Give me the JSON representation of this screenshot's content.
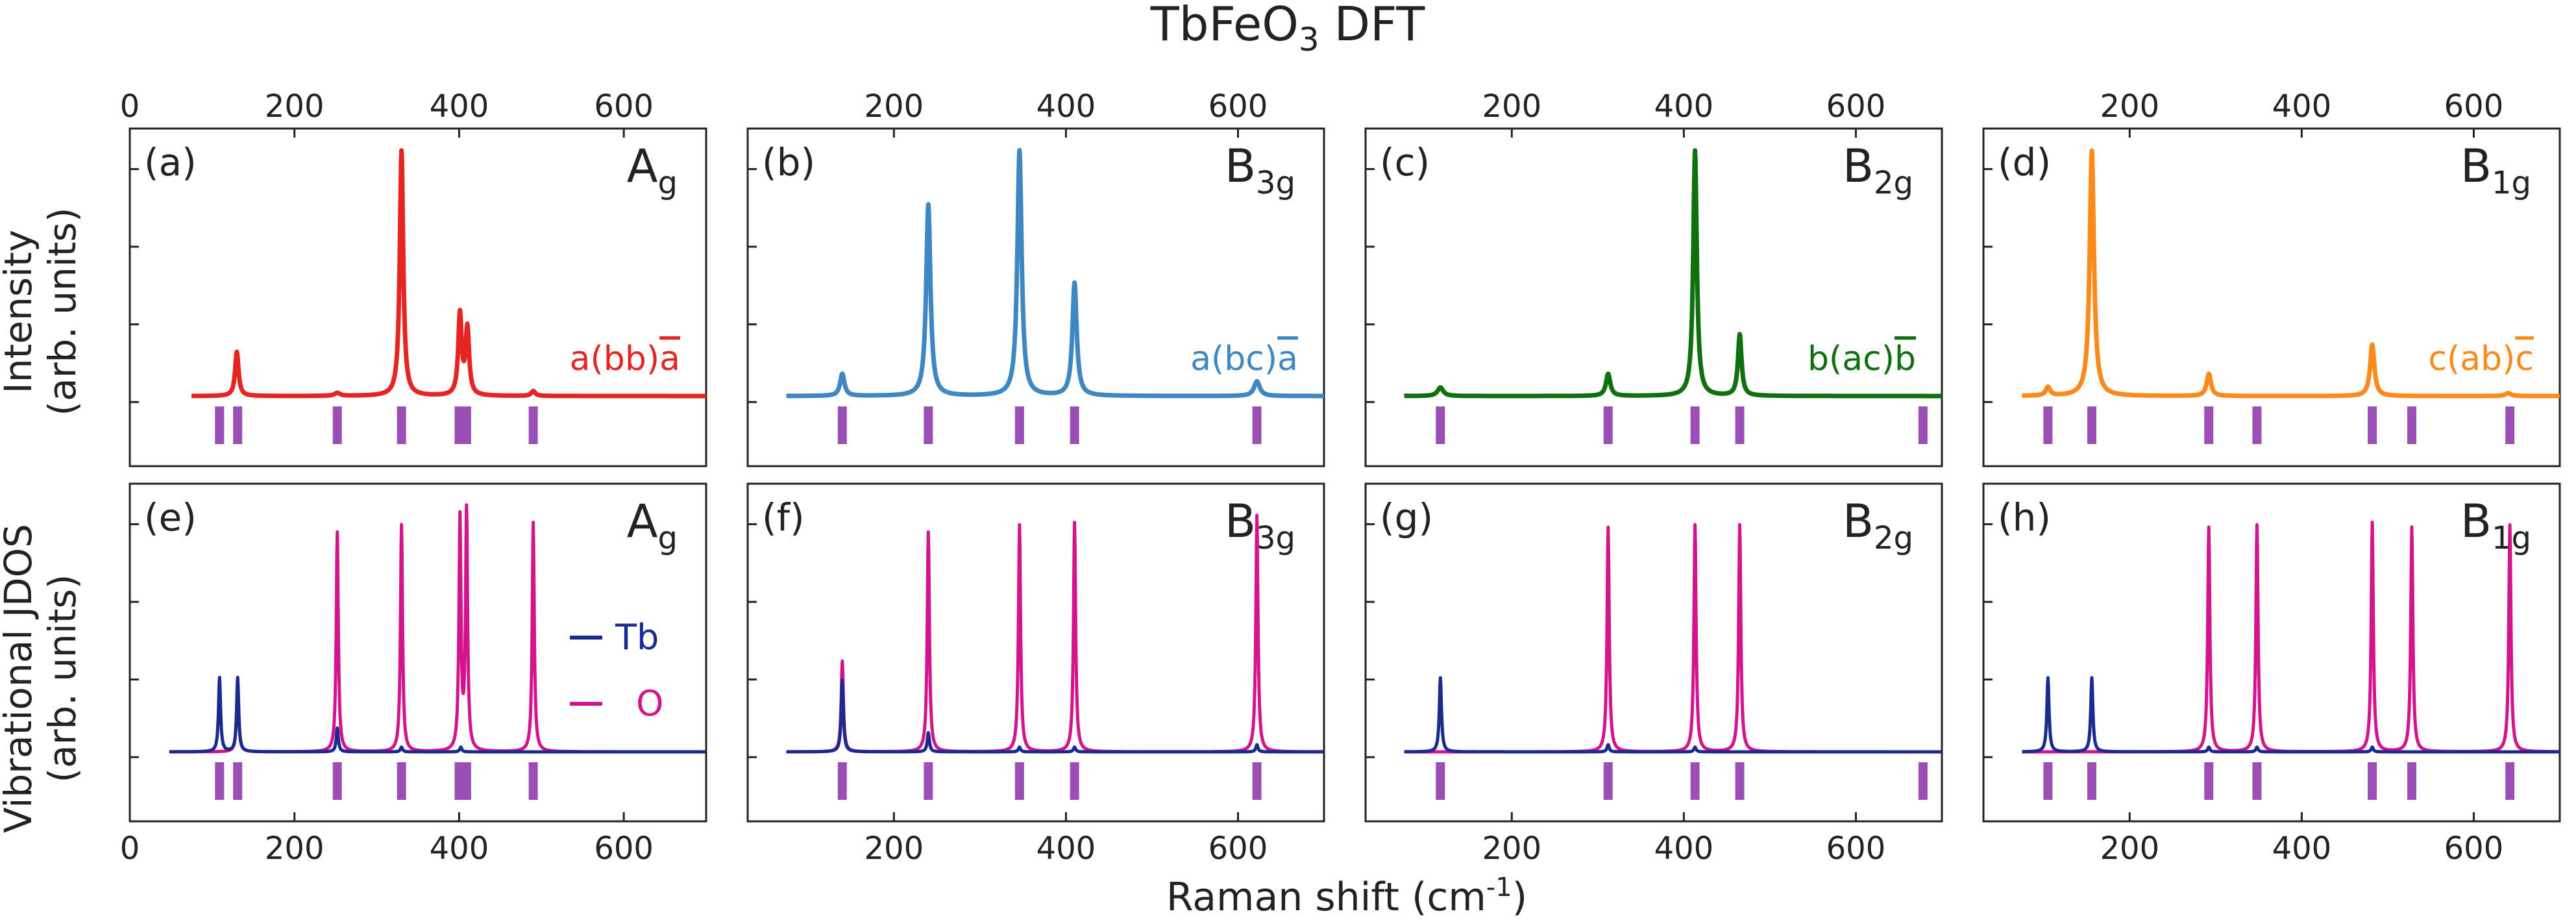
{
  "title": "TbFeO",
  "title_sub": "3",
  "title_rest": " DFT",
  "xlabel": "Raman shift (cm",
  "xlabel_sup": "-1",
  "xlabel_end": ")",
  "row_labels": [
    {
      "line1": "Intensity",
      "line2": "(arb. units)"
    },
    {
      "line1": "Vibrational JDOS",
      "line2": "(arb. units)"
    }
  ],
  "legend": [
    {
      "label": "Tb",
      "color": "#1a2a8f"
    },
    {
      "label": "O",
      "color": "#d4148a"
    }
  ],
  "colors": {
    "tb": "#1a2a8f",
    "o": "#d4148a",
    "tick_marks": "#9b4fb5",
    "frame": "#222222"
  },
  "chart_data": [
    {
      "type": "line",
      "panel": "(a)",
      "sym_base": "A",
      "sym_sub": "g",
      "geometry": "a(bb)",
      "geometry_bar": "a",
      "color": "#e52521",
      "xlim": [
        0,
        700
      ],
      "xticks": [
        0,
        200,
        400,
        600
      ],
      "tick_axis": "top",
      "x_start": 75,
      "peaks": [
        [
          130,
          0.18,
          2.5
        ],
        [
          252,
          0.012,
          4
        ],
        [
          330,
          1.0,
          2.5
        ],
        [
          401,
          0.33,
          2.5
        ],
        [
          410,
          0.27,
          2.5
        ],
        [
          490,
          0.02,
          3
        ]
      ],
      "modes": [
        109,
        131,
        252,
        330,
        400,
        409,
        490
      ]
    },
    {
      "type": "line",
      "panel": "(b)",
      "sym_base": "B",
      "sym_sub": "3g",
      "geometry": "a(bc)",
      "geometry_bar": "a",
      "color": "#3f87c2",
      "xlim": [
        30,
        700
      ],
      "xticks": [
        200,
        400,
        600
      ],
      "tick_axis": "top",
      "x_start": 75,
      "peaks": [
        [
          140,
          0.09,
          3
        ],
        [
          240,
          0.78,
          3
        ],
        [
          346,
          1.0,
          3
        ],
        [
          410,
          0.46,
          3
        ],
        [
          622,
          0.06,
          4
        ]
      ],
      "modes": [
        140,
        240,
        346,
        410,
        622
      ]
    },
    {
      "type": "line",
      "panel": "(c)",
      "sym_base": "B",
      "sym_sub": "2g",
      "geometry": "b(ac)",
      "geometry_bar": "b",
      "color": "#107010",
      "xlim": [
        30,
        700
      ],
      "xticks": [
        200,
        400,
        600
      ],
      "tick_axis": "top",
      "x_start": 75,
      "peaks": [
        [
          117,
          0.035,
          4
        ],
        [
          312,
          0.09,
          3
        ],
        [
          413,
          1.0,
          2.5
        ],
        [
          465,
          0.25,
          2.5
        ]
      ],
      "modes": [
        117,
        312,
        413,
        465,
        678
      ]
    },
    {
      "type": "line",
      "panel": "(d)",
      "sym_base": "B",
      "sym_sub": "1g",
      "geometry": "c(ab)",
      "geometry_bar": "c",
      "color": "#fb8a1b",
      "xlim": [
        30,
        700
      ],
      "xticks": [
        200,
        400,
        600
      ],
      "tick_axis": "top",
      "x_start": 75,
      "peaks": [
        [
          105,
          0.035,
          3
        ],
        [
          156,
          1.0,
          3
        ],
        [
          292,
          0.09,
          3
        ],
        [
          482,
          0.21,
          3
        ],
        [
          640,
          0.012,
          4
        ]
      ],
      "modes": [
        105,
        156,
        292,
        348,
        482,
        528,
        642
      ]
    },
    {
      "type": "line",
      "panel": "(e)",
      "sym_base": "A",
      "sym_sub": "g",
      "color": "#1a2a8f",
      "xlim": [
        0,
        700
      ],
      "xticks": [
        0,
        200,
        400,
        600
      ],
      "tick_axis": "bottom",
      "x_start": 48,
      "peaks_o": [
        [
          131,
          0.3,
          1.5
        ],
        [
          252,
          0.92,
          1.5
        ],
        [
          330,
          0.95,
          1.5
        ],
        [
          401,
          0.97,
          1.5
        ],
        [
          409,
          1.0,
          1.5
        ],
        [
          490,
          0.96,
          1.5
        ]
      ],
      "peaks_tb": [
        [
          109,
          0.31,
          1.5
        ],
        [
          131,
          0.31,
          1.5
        ],
        [
          252,
          0.1,
          1.5
        ],
        [
          330,
          0.02,
          1.5
        ],
        [
          402,
          0.02,
          1.5
        ]
      ],
      "modes": [
        109,
        131,
        252,
        330,
        400,
        409,
        490
      ]
    },
    {
      "type": "line",
      "panel": "(f)",
      "sym_base": "B",
      "sym_sub": "3g",
      "color": "#1a2a8f",
      "xlim": [
        30,
        700
      ],
      "xticks": [
        200,
        400,
        600
      ],
      "tick_axis": "bottom",
      "x_start": 75,
      "peaks_o": [
        [
          140,
          0.38,
          1.5
        ],
        [
          240,
          0.92,
          1.5
        ],
        [
          346,
          0.95,
          1.5
        ],
        [
          410,
          0.96,
          1.5
        ],
        [
          622,
          0.99,
          1.5
        ]
      ],
      "peaks_tb": [
        [
          140,
          0.3,
          1.5
        ],
        [
          240,
          0.08,
          1.5
        ],
        [
          346,
          0.02,
          1.5
        ],
        [
          410,
          0.02,
          1.5
        ],
        [
          622,
          0.03,
          1.5
        ]
      ],
      "modes": [
        140,
        240,
        346,
        410,
        622
      ]
    },
    {
      "type": "line",
      "panel": "(g)",
      "sym_base": "B",
      "sym_sub": "2g",
      "color": "#1a2a8f",
      "xlim": [
        30,
        700
      ],
      "xticks": [
        200,
        400,
        600
      ],
      "tick_axis": "bottom",
      "x_start": 75,
      "peaks_o": [
        [
          312,
          0.94,
          1.5
        ],
        [
          413,
          0.95,
          1.5
        ],
        [
          465,
          0.95,
          1.5
        ]
      ],
      "peaks_tb": [
        [
          117,
          0.31,
          1.5
        ],
        [
          312,
          0.03,
          1.5
        ],
        [
          413,
          0.02,
          1.5
        ]
      ],
      "modes": [
        117,
        312,
        413,
        465,
        678
      ]
    },
    {
      "type": "line",
      "panel": "(h)",
      "sym_base": "B",
      "sym_sub": "1g",
      "color": "#1a2a8f",
      "xlim": [
        30,
        700
      ],
      "xticks": [
        200,
        400,
        600
      ],
      "tick_axis": "bottom",
      "x_start": 75,
      "peaks_o": [
        [
          292,
          0.94,
          1.5
        ],
        [
          348,
          0.95,
          1.5
        ],
        [
          482,
          0.96,
          1.5
        ],
        [
          528,
          0.94,
          1.5
        ],
        [
          642,
          0.95,
          1.5
        ]
      ],
      "peaks_tb": [
        [
          105,
          0.31,
          1.5
        ],
        [
          156,
          0.31,
          1.5
        ],
        [
          292,
          0.02,
          1.5
        ],
        [
          348,
          0.02,
          1.5
        ],
        [
          482,
          0.02,
          1.5
        ]
      ],
      "modes": [
        105,
        156,
        292,
        348,
        482,
        528,
        642
      ]
    }
  ]
}
